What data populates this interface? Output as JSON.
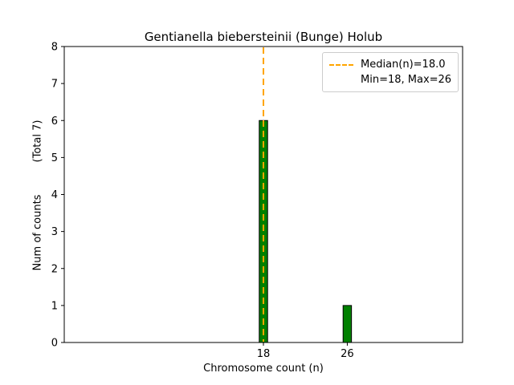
{
  "chart_data": {
    "type": "bar",
    "title": "Gentianella biebersteinii (Bunge) Holub",
    "xlabel": "Chromosome count (n)",
    "ylabel": "Num of counts",
    "ylabel_note": "(Total 7)",
    "total_counts": 7,
    "x": [
      18,
      26
    ],
    "values": [
      6,
      1
    ],
    "median": 18.0,
    "min": 18,
    "max": 26,
    "xticks": [
      18,
      26
    ],
    "yticks": [
      0,
      1,
      2,
      3,
      4,
      5,
      6,
      7,
      8
    ],
    "xlim": [
      -1,
      37
    ],
    "ylim": [
      0,
      8
    ],
    "bar_width": 0.8,
    "grid": false,
    "bar_color": "#008000",
    "bar_edge_color": "#000000",
    "median_line_color": "#FFA500",
    "legend": {
      "position": "upper right",
      "entries": [
        "Median(n)=18.0",
        "Min=18, Max=26"
      ]
    }
  }
}
